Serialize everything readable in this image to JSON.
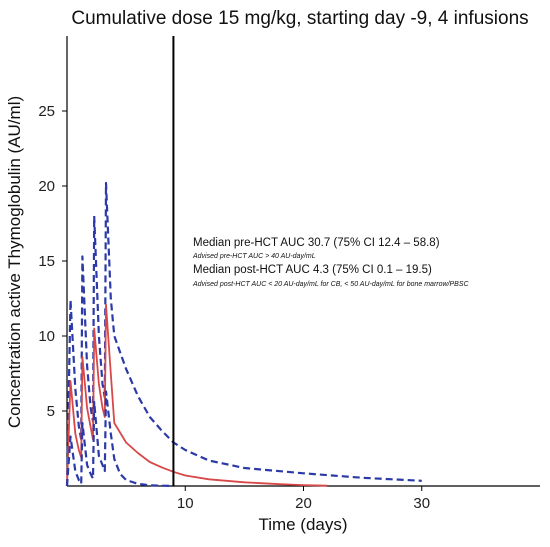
{
  "chart_data": {
    "type": "line",
    "title": "Cumulative dose 15 mg/kg, starting day -9, 4 infusions",
    "xlabel": "Time (days)",
    "ylabel": "Concentration active Thymoglobulin (AU/ml)",
    "xlim": [
      0,
      40
    ],
    "ylim": [
      0,
      30
    ],
    "x_ticks": [
      10,
      20,
      30
    ],
    "y_ticks": [
      5,
      10,
      15,
      20,
      25
    ],
    "grid": false,
    "vline": {
      "x": 9,
      "color": "#000000"
    },
    "series": [
      {
        "style": "dashed",
        "color": "#2b3aa8",
        "points": [
          [
            0,
            0
          ],
          [
            0.3,
            12.4
          ],
          [
            0.7,
            6.5
          ],
          [
            1.0,
            4.0
          ],
          [
            1.2,
            3.1
          ],
          [
            1.3,
            15.3
          ],
          [
            1.7,
            8.0
          ],
          [
            2.0,
            5.2
          ],
          [
            2.2,
            4.3
          ],
          [
            2.3,
            18.0
          ],
          [
            2.7,
            10.0
          ],
          [
            3.0,
            6.8
          ],
          [
            3.2,
            5.9
          ],
          [
            3.3,
            20.2
          ],
          [
            3.7,
            12.5
          ],
          [
            4.0,
            10.0
          ],
          [
            5,
            7.8
          ],
          [
            6,
            6.0
          ],
          [
            7,
            4.6
          ],
          [
            8,
            3.7
          ],
          [
            9,
            2.9
          ],
          [
            10,
            2.4
          ],
          [
            12,
            1.7
          ],
          [
            15,
            1.2
          ],
          [
            20,
            0.85
          ],
          [
            25,
            0.55
          ],
          [
            30,
            0.35
          ]
        ]
      },
      {
        "style": "solid",
        "color": "#d84848",
        "points": [
          [
            0,
            0
          ],
          [
            0.3,
            7.0
          ],
          [
            0.7,
            3.5
          ],
          [
            1.0,
            2.4
          ],
          [
            1.2,
            1.9
          ],
          [
            1.3,
            8.6
          ],
          [
            1.7,
            5.2
          ],
          [
            2.0,
            3.9
          ],
          [
            2.2,
            3.1
          ],
          [
            2.3,
            10.5
          ],
          [
            2.7,
            6.8
          ],
          [
            3.0,
            5.2
          ],
          [
            3.2,
            4.6
          ],
          [
            3.3,
            12.1
          ],
          [
            3.7,
            7.5
          ],
          [
            4.0,
            4.2
          ],
          [
            5,
            2.9
          ],
          [
            6,
            2.2
          ],
          [
            7,
            1.6
          ],
          [
            8,
            1.25
          ],
          [
            9,
            0.95
          ],
          [
            10,
            0.7
          ],
          [
            12,
            0.45
          ],
          [
            15,
            0.25
          ],
          [
            18,
            0.12
          ],
          [
            20,
            0.06
          ],
          [
            22,
            0.02
          ]
        ]
      },
      {
        "style": "dashed",
        "color": "#2b3aa8",
        "points": [
          [
            0,
            0
          ],
          [
            0.3,
            3.3
          ],
          [
            0.7,
            1.0
          ],
          [
            1.0,
            0.4
          ],
          [
            1.2,
            0.15
          ],
          [
            1.3,
            4.2
          ],
          [
            1.7,
            1.4
          ],
          [
            2.0,
            0.8
          ],
          [
            2.2,
            0.5
          ],
          [
            2.3,
            5.6
          ],
          [
            2.7,
            2.0
          ],
          [
            3.0,
            1.4
          ],
          [
            3.2,
            1.0
          ],
          [
            3.3,
            6.3
          ],
          [
            3.7,
            3.5
          ],
          [
            4.0,
            1.8
          ],
          [
            4.5,
            0.8
          ],
          [
            5,
            0.4
          ],
          [
            6,
            0.15
          ],
          [
            7,
            0.05
          ],
          [
            8,
            0.02
          ],
          [
            9,
            0
          ]
        ]
      }
    ],
    "annotations": {
      "pre_main": "Median pre-HCT AUC 30.7 (75% CI 12.4 – 58.8)",
      "pre_sub": "Advised pre-HCT AUC > 40 AU-day/mL",
      "post_main": "Median post-HCT AUC 4.3 (75% CI 0.1 – 19.5)",
      "post_sub": "Advised post-HCT AUC < 20 AU-day/mL for CB, < 50 AU-day/mL for bone marrow/PBSC"
    }
  }
}
